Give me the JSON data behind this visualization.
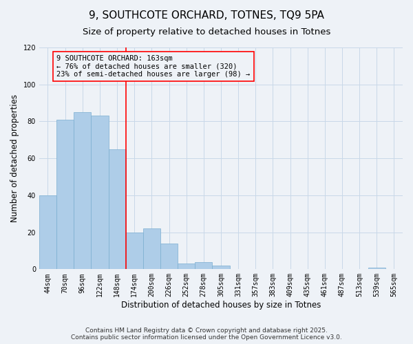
{
  "title": "9, SOUTHCOTE ORCHARD, TOTNES, TQ9 5PA",
  "subtitle": "Size of property relative to detached houses in Totnes",
  "xlabel": "Distribution of detached houses by size in Totnes",
  "ylabel": "Number of detached properties",
  "categories": [
    "44sqm",
    "70sqm",
    "96sqm",
    "122sqm",
    "148sqm",
    "174sqm",
    "200sqm",
    "226sqm",
    "252sqm",
    "278sqm",
    "305sqm",
    "331sqm",
    "357sqm",
    "383sqm",
    "409sqm",
    "435sqm",
    "461sqm",
    "487sqm",
    "513sqm",
    "539sqm",
    "565sqm"
  ],
  "values": [
    40,
    81,
    85,
    83,
    65,
    20,
    22,
    14,
    3,
    4,
    2,
    0,
    0,
    0,
    0,
    0,
    0,
    0,
    0,
    1,
    0
  ],
  "bar_color": "#aecde8",
  "bar_edge_color": "#7aaed0",
  "vline_x_index": 4.5,
  "vline_color": "red",
  "annotation_box_text": "9 SOUTHCOTE ORCHARD: 163sqm\n← 76% of detached houses are smaller (320)\n23% of semi-detached houses are larger (98) →",
  "annotation_box_color": "red",
  "ylim": [
    0,
    120
  ],
  "yticks": [
    0,
    20,
    40,
    60,
    80,
    100,
    120
  ],
  "grid_color": "#c8d8e8",
  "background_color": "#eef2f7",
  "footer_line1": "Contains HM Land Registry data © Crown copyright and database right 2025.",
  "footer_line2": "Contains public sector information licensed under the Open Government Licence v3.0.",
  "title_fontsize": 11,
  "subtitle_fontsize": 9.5,
  "axis_label_fontsize": 8.5,
  "tick_fontsize": 7,
  "annotation_fontsize": 7.5,
  "footer_fontsize": 6.5
}
